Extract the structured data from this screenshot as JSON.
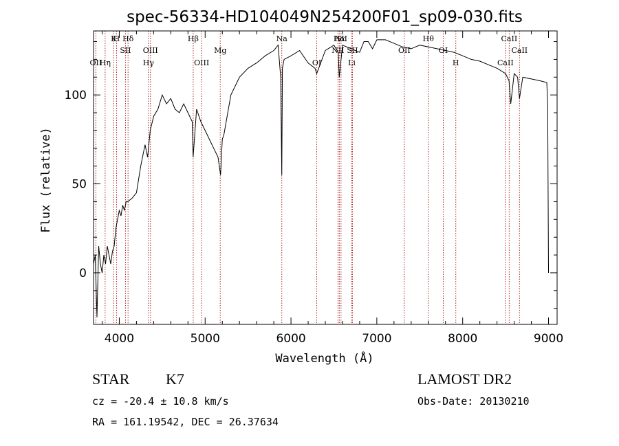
{
  "chart_data": {
    "type": "line",
    "title": "spec-56334-HD104049N254200F01_sp09-030.fits",
    "xlabel": "Wavelength (Å)",
    "ylabel": "Flux (relative)",
    "xlim": [
      3700,
      9100
    ],
    "ylim": [
      -29,
      136
    ],
    "x_ticks": [
      4000,
      5000,
      6000,
      7000,
      8000,
      9000
    ],
    "y_ticks": [
      0,
      50,
      100
    ],
    "series": [
      {
        "x": [
          3700,
          3720,
          3740,
          3760,
          3780,
          3800,
          3820,
          3840,
          3860,
          3880,
          3900,
          3920,
          3940,
          3960,
          3980,
          4000,
          4020,
          4040,
          4060,
          4080,
          4100,
          4150,
          4200,
          4250,
          4300,
          4330,
          4340,
          4360,
          4400,
          4450,
          4500,
          4550,
          4600,
          4650,
          4700,
          4750,
          4800,
          4850,
          4860,
          4900,
          4950,
          5000,
          5050,
          5100,
          5150,
          5180,
          5200,
          5220,
          5300,
          5400,
          5500,
          5600,
          5700,
          5800,
          5850,
          5880,
          5893,
          5900,
          5920,
          6000,
          6100,
          6200,
          6280,
          6300,
          6400,
          6500,
          6550,
          6563,
          6600,
          6700,
          6800,
          6850,
          6900,
          6950,
          7000,
          7100,
          7200,
          7300,
          7400,
          7500,
          7600,
          7700,
          7800,
          7900,
          8000,
          8100,
          8200,
          8300,
          8400,
          8500,
          8540,
          8560,
          8600,
          8640,
          8662,
          8700,
          8800,
          8900,
          8980,
          8990,
          9000
        ],
        "y": [
          5,
          10,
          -25,
          15,
          5,
          0,
          10,
          5,
          15,
          10,
          5,
          12,
          15,
          25,
          30,
          35,
          32,
          38,
          35,
          40,
          40,
          42,
          45,
          60,
          72,
          65,
          70,
          80,
          88,
          92,
          100,
          95,
          98,
          92,
          90,
          95,
          90,
          85,
          65,
          92,
          85,
          80,
          75,
          70,
          65,
          55,
          75,
          78,
          100,
          110,
          115,
          118,
          122,
          125,
          128,
          110,
          55,
          115,
          120,
          122,
          125,
          118,
          115,
          112,
          125,
          128,
          124,
          110,
          128,
          126,
          124,
          130,
          130,
          126,
          131,
          131,
          129,
          127,
          126,
          128,
          127,
          126,
          125,
          124,
          122,
          120,
          119,
          117,
          115,
          112,
          108,
          95,
          112,
          110,
          98,
          110,
          109,
          108,
          107,
          95,
          0
        ]
      }
    ],
    "lines": [
      {
        "wavelength": 3727,
        "label": "OII",
        "row": 3
      },
      {
        "wavelength": 3835,
        "label": "Hη",
        "row": 3
      },
      {
        "wavelength": 3934,
        "label": "K",
        "row": 1
      },
      {
        "wavelength": 3968,
        "label": "H",
        "row": 1
      },
      {
        "wavelength": 4072,
        "label": "SII",
        "row": 2
      },
      {
        "wavelength": 4102,
        "label": "Hδ",
        "row": 1
      },
      {
        "wavelength": 4340,
        "label": "Hγ",
        "row": 3
      },
      {
        "wavelength": 4363,
        "label": "OIII",
        "row": 2
      },
      {
        "wavelength": 4861,
        "label": "Hβ",
        "row": 1
      },
      {
        "wavelength": 4959,
        "label": "OIII",
        "row": 3
      },
      {
        "wavelength": 5176,
        "label": "Mg",
        "row": 2
      },
      {
        "wavelength": 5893,
        "label": "Na",
        "row": 1
      },
      {
        "wavelength": 6300,
        "label": "OI",
        "row": 3
      },
      {
        "wavelength": 6548,
        "label": "NII",
        "row": 2
      },
      {
        "wavelength": 6563,
        "label": "Hα",
        "row": 1
      },
      {
        "wavelength": 6583,
        "label": "NII",
        "row": 1
      },
      {
        "wavelength": 6708,
        "label": "Li",
        "row": 3
      },
      {
        "wavelength": 6716,
        "label": "SII",
        "row": 2
      },
      {
        "wavelength": 7320,
        "label": "OII",
        "row": 2
      },
      {
        "wavelength": 7600,
        "label": "Hθ",
        "row": 1
      },
      {
        "wavelength": 7774,
        "label": "OI",
        "row": 2
      },
      {
        "wavelength": 7920,
        "label": "H",
        "row": 3
      },
      {
        "wavelength": 8498,
        "label": "CaII",
        "row": 3
      },
      {
        "wavelength": 8542,
        "label": "CaII",
        "row": 1
      },
      {
        "wavelength": 8662,
        "label": "CaII",
        "row": 2
      }
    ],
    "line_color": "#000000",
    "marker_color": "#b22222"
  },
  "info": {
    "object_class": "STAR",
    "subclass": "K7",
    "survey": "LAMOST DR2",
    "redshift": "cz = -20.4 ± 10.8 km/s",
    "obs_date": "Obs-Date: 20130210",
    "coords": "RA = 161.19542, DEC =  26.37634"
  }
}
